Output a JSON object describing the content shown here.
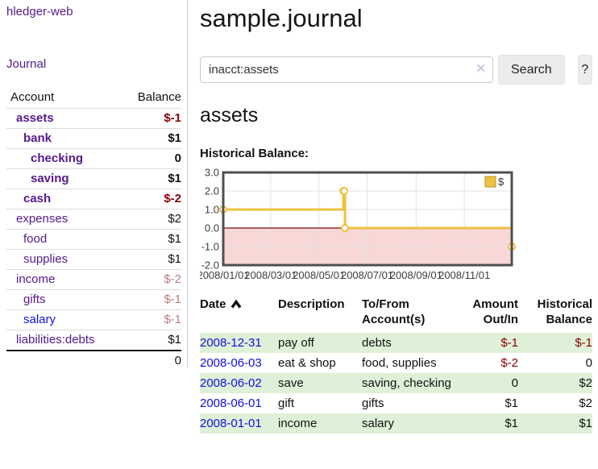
{
  "sidebar": {
    "app_title": "hledger-web",
    "nav": {
      "journal": "Journal"
    },
    "accounts_table": {
      "headers": {
        "account": "Account",
        "balance": "Balance"
      },
      "rows": [
        {
          "name": "assets",
          "indent": 1,
          "bold": true,
          "balance": "$-1",
          "balance_class": "neg-strong",
          "link_color": "purple"
        },
        {
          "name": "bank",
          "indent": 2,
          "bold": true,
          "balance": "$1",
          "balance_class": "pos-strong",
          "link_color": "purple"
        },
        {
          "name": "checking",
          "indent": 3,
          "bold": true,
          "balance": "0",
          "balance_class": "pos-strong",
          "link_color": "purple"
        },
        {
          "name": "saving",
          "indent": 3,
          "bold": true,
          "balance": "$1",
          "balance_class": "pos-strong",
          "link_color": "purple"
        },
        {
          "name": "cash",
          "indent": 2,
          "bold": true,
          "balance": "$-2",
          "balance_class": "neg-strong",
          "link_color": "purple"
        },
        {
          "name": "expenses",
          "indent": 1,
          "bold": false,
          "balance": "$2",
          "balance_class": "pos",
          "link_color": "purple"
        },
        {
          "name": "food",
          "indent": 2,
          "bold": false,
          "balance": "$1",
          "balance_class": "pos",
          "link_color": "purple"
        },
        {
          "name": "supplies",
          "indent": 2,
          "bold": false,
          "balance": "$1",
          "balance_class": "pos",
          "link_color": "purple"
        },
        {
          "name": "income",
          "indent": 1,
          "bold": false,
          "balance": "$-2",
          "balance_class": "neg-muted",
          "link_color": "purple"
        },
        {
          "name": "gifts",
          "indent": 2,
          "bold": false,
          "balance": "$-1",
          "balance_class": "neg-muted",
          "link_color": "purple"
        },
        {
          "name": "salary",
          "indent": 2,
          "bold": false,
          "balance": "$-1",
          "balance_class": "neg-muted",
          "link_color": "blue"
        },
        {
          "name": "liabilities:debts",
          "indent": 1,
          "bold": false,
          "balance": "$1",
          "balance_class": "pos",
          "link_color": "purple"
        }
      ],
      "total": "0"
    }
  },
  "main": {
    "title": "sample.journal",
    "search": {
      "value": "inacct:assets",
      "clear_icon": "✕",
      "button": "Search",
      "help_button": "?"
    },
    "account_heading": "assets",
    "chart_label": "Historical Balance:"
  },
  "chart_data": {
    "type": "line",
    "step": true,
    "title": "Historical Balance",
    "series": [
      {
        "name": "$",
        "color": "#edc240",
        "x": [
          "2008-01-01",
          "2008-06-01",
          "2008-06-02",
          "2008-06-03",
          "2008-12-31"
        ],
        "x_day": [
          0,
          152,
          153,
          154,
          365
        ],
        "y": [
          1,
          2,
          2,
          0,
          -1
        ]
      }
    ],
    "x_ticks": [
      {
        "label": "2008/01/01",
        "day": 0
      },
      {
        "label": "2008/03/01",
        "day": 60
      },
      {
        "label": "2008/05/01",
        "day": 121
      },
      {
        "label": "2008/07/01",
        "day": 182
      },
      {
        "label": "2008/09/01",
        "day": 244
      },
      {
        "label": "2008/11/01",
        "day": 305
      }
    ],
    "y_ticks": [
      "3.0",
      "2.0",
      "1.0",
      "0.0",
      "-1.0",
      "-2.0"
    ],
    "ylim": [
      -2,
      3
    ],
    "xlim_days": [
      0,
      365
    ],
    "grid": true,
    "negative_region_color": "#f6c9c9",
    "zero_line_color": "#7b0c0c",
    "legend": {
      "label": "$",
      "position": "top-right"
    }
  },
  "transactions": {
    "headers": [
      "Date",
      "Description",
      "To/From Account(s)",
      "Amount Out/In",
      "Historical Balance"
    ],
    "sort": {
      "column": "Date",
      "direction": "asc"
    },
    "rows": [
      {
        "date": "2008-12-31",
        "description": "pay off",
        "accounts": "debts",
        "amount": "$-1",
        "amount_neg": true,
        "balance": "$-1",
        "balance_neg": true
      },
      {
        "date": "2008-06-03",
        "description": "eat & shop",
        "accounts": "food, supplies",
        "amount": "$-2",
        "amount_neg": true,
        "balance": "0",
        "balance_neg": false
      },
      {
        "date": "2008-06-02",
        "description": "save",
        "accounts": "saving, checking",
        "amount": "0",
        "amount_neg": false,
        "balance": "$2",
        "balance_neg": false
      },
      {
        "date": "2008-06-01",
        "description": "gift",
        "accounts": "gifts",
        "amount": "$1",
        "amount_neg": false,
        "balance": "$2",
        "balance_neg": false
      },
      {
        "date": "2008-01-01",
        "description": "income",
        "accounts": "salary",
        "amount": "$1",
        "amount_neg": false,
        "balance": "$1",
        "balance_neg": false
      }
    ]
  }
}
